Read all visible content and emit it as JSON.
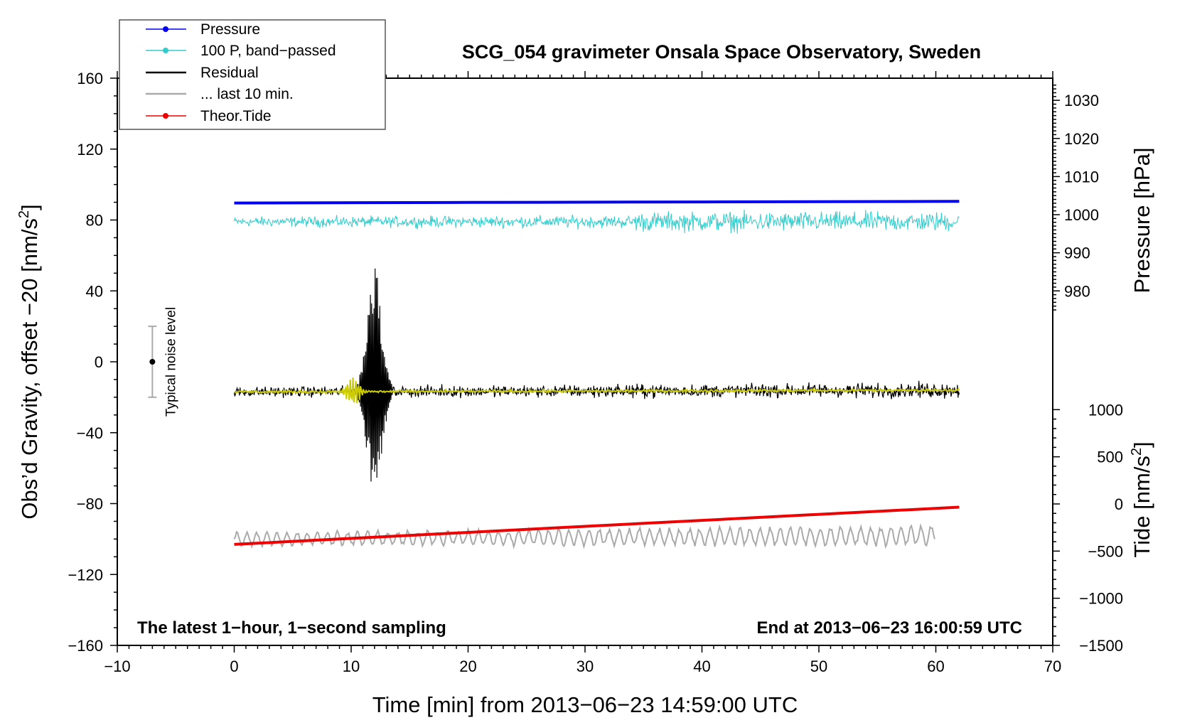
{
  "chart_data": {
    "type": "line",
    "title": "SCG_054 gravimeter Onsala Space Observatory, Sweden",
    "xlabel": "Time [min] from 2013−06−23 14:59:00 UTC",
    "ylabel_left": {
      "text": "Obs’d Gravity, offset −20 [nm/s",
      "sup": "2",
      "close": "]"
    },
    "ylabel_right_top": "Pressure [hPa]",
    "ylabel_right_bottom": {
      "text": "Tide [nm/s",
      "sup": "2",
      "close": "]"
    },
    "annotation_left": "The latest 1−hour, 1−second sampling",
    "annotation_right": "End at 2013−06−23 16:00:59 UTC",
    "noise_label": "Typical noise level",
    "xlim": [
      -10,
      70
    ],
    "ylim_left": [
      -160,
      160
    ],
    "x_ticks": [
      {
        "value": -10,
        "label": "−10"
      },
      {
        "value": 0,
        "label": "0"
      },
      {
        "value": 10,
        "label": "10"
      },
      {
        "value": 20,
        "label": "20"
      },
      {
        "value": 30,
        "label": "30"
      },
      {
        "value": 40,
        "label": "40"
      },
      {
        "value": 50,
        "label": "50"
      },
      {
        "value": 60,
        "label": "60"
      },
      {
        "value": 70,
        "label": "70"
      }
    ],
    "y_ticks_left": [
      {
        "value": 160,
        "label": "160"
      },
      {
        "value": 120,
        "label": "120"
      },
      {
        "value": 80,
        "label": "80"
      },
      {
        "value": 40,
        "label": "40"
      },
      {
        "value": 0,
        "label": "0"
      },
      {
        "value": -40,
        "label": "−40"
      },
      {
        "value": -80,
        "label": "−80"
      },
      {
        "value": -120,
        "label": "−120"
      },
      {
        "value": -160,
        "label": "−160"
      }
    ],
    "pressure_axis": {
      "gravity_equivalent": {
        "p1": 980,
        "g1": 40,
        "p2": 1030,
        "g2": 147.5
      },
      "ticks": [
        {
          "value": 1030,
          "label": "1030"
        },
        {
          "value": 1020,
          "label": "1020"
        },
        {
          "value": 1010,
          "label": "1010"
        },
        {
          "value": 1000,
          "label": "1000"
        },
        {
          "value": 990,
          "label": "990"
        },
        {
          "value": 980,
          "label": "980"
        }
      ]
    },
    "tide_axis": {
      "gravity_equivalent": {
        "t1": 1000,
        "g1": -27,
        "t2": -1500,
        "g2": -160
      },
      "ticks": [
        {
          "value": 1000,
          "label": "1000"
        },
        {
          "value": 500,
          "label": "500"
        },
        {
          "value": 0,
          "label": "0"
        },
        {
          "value": -500,
          "label": "−500"
        },
        {
          "value": -1000,
          "label": "−1000"
        },
        {
          "value": -1500,
          "label": "−1500"
        }
      ]
    },
    "noise_bar": {
      "x": -7,
      "center": 0,
      "low": -20,
      "high": 20
    },
    "series": [
      {
        "name": "Pressure",
        "color": "#0000ee",
        "units": "gravity-equivalent",
        "x": [
          0,
          20,
          40,
          62
        ],
        "y": [
          89.6,
          89.9,
          90.2,
          90.5
        ]
      },
      {
        "name": "100 P, band−passed",
        "color": "#33cccc",
        "units": "gravity-equivalent",
        "x": [
          0,
          62
        ],
        "base": [
          79,
          79
        ],
        "amplitude": [
          4,
          8
        ],
        "note": "high-frequency noise around ~80; larger amplitude after 34 min"
      },
      {
        "name": "Residual",
        "color": "#000000",
        "units": "nm/s2",
        "x": [
          0,
          62
        ],
        "base": [
          -17,
          -16
        ],
        "amplitude": [
          4,
          6
        ],
        "event": {
          "start": 9.5,
          "end": 13.5,
          "peak_x": 12,
          "peak_max": 53,
          "peak_min": -76
        }
      },
      {
        "name": "... last 10 min.",
        "color": "#aaaaaa",
        "units": "nm/s2",
        "x": [
          0,
          62
        ],
        "y": [
          -17,
          -16
        ],
        "note": "yellow smoothed residual curve; visible burst 9–12 min"
      },
      {
        "name": "Theor.Tide",
        "color": "#ee0000",
        "units": "nm/s2",
        "x": [
          0,
          62
        ],
        "y": [
          -103,
          -82
        ]
      },
      {
        "name": "grey trace",
        "color": "#aaaaaa",
        "units": "nm/s2",
        "x": [
          0,
          60
        ],
        "base": [
          -100,
          -98
        ],
        "amplitude": [
          4,
          6
        ]
      }
    ],
    "legend": [
      {
        "label": "Pressure",
        "color": "#0000ee",
        "marker": true
      },
      {
        "label": "100 P, band−passed",
        "color": "#33cccc",
        "marker": true
      },
      {
        "label": "Residual",
        "color": "#000000",
        "marker": false
      },
      {
        "label": "... last 10 min.",
        "color": "#aaaaaa",
        "marker": false
      },
      {
        "label": "Theor.Tide",
        "color": "#ee0000",
        "marker": true
      }
    ],
    "smoothed_color": "#cccc00"
  }
}
